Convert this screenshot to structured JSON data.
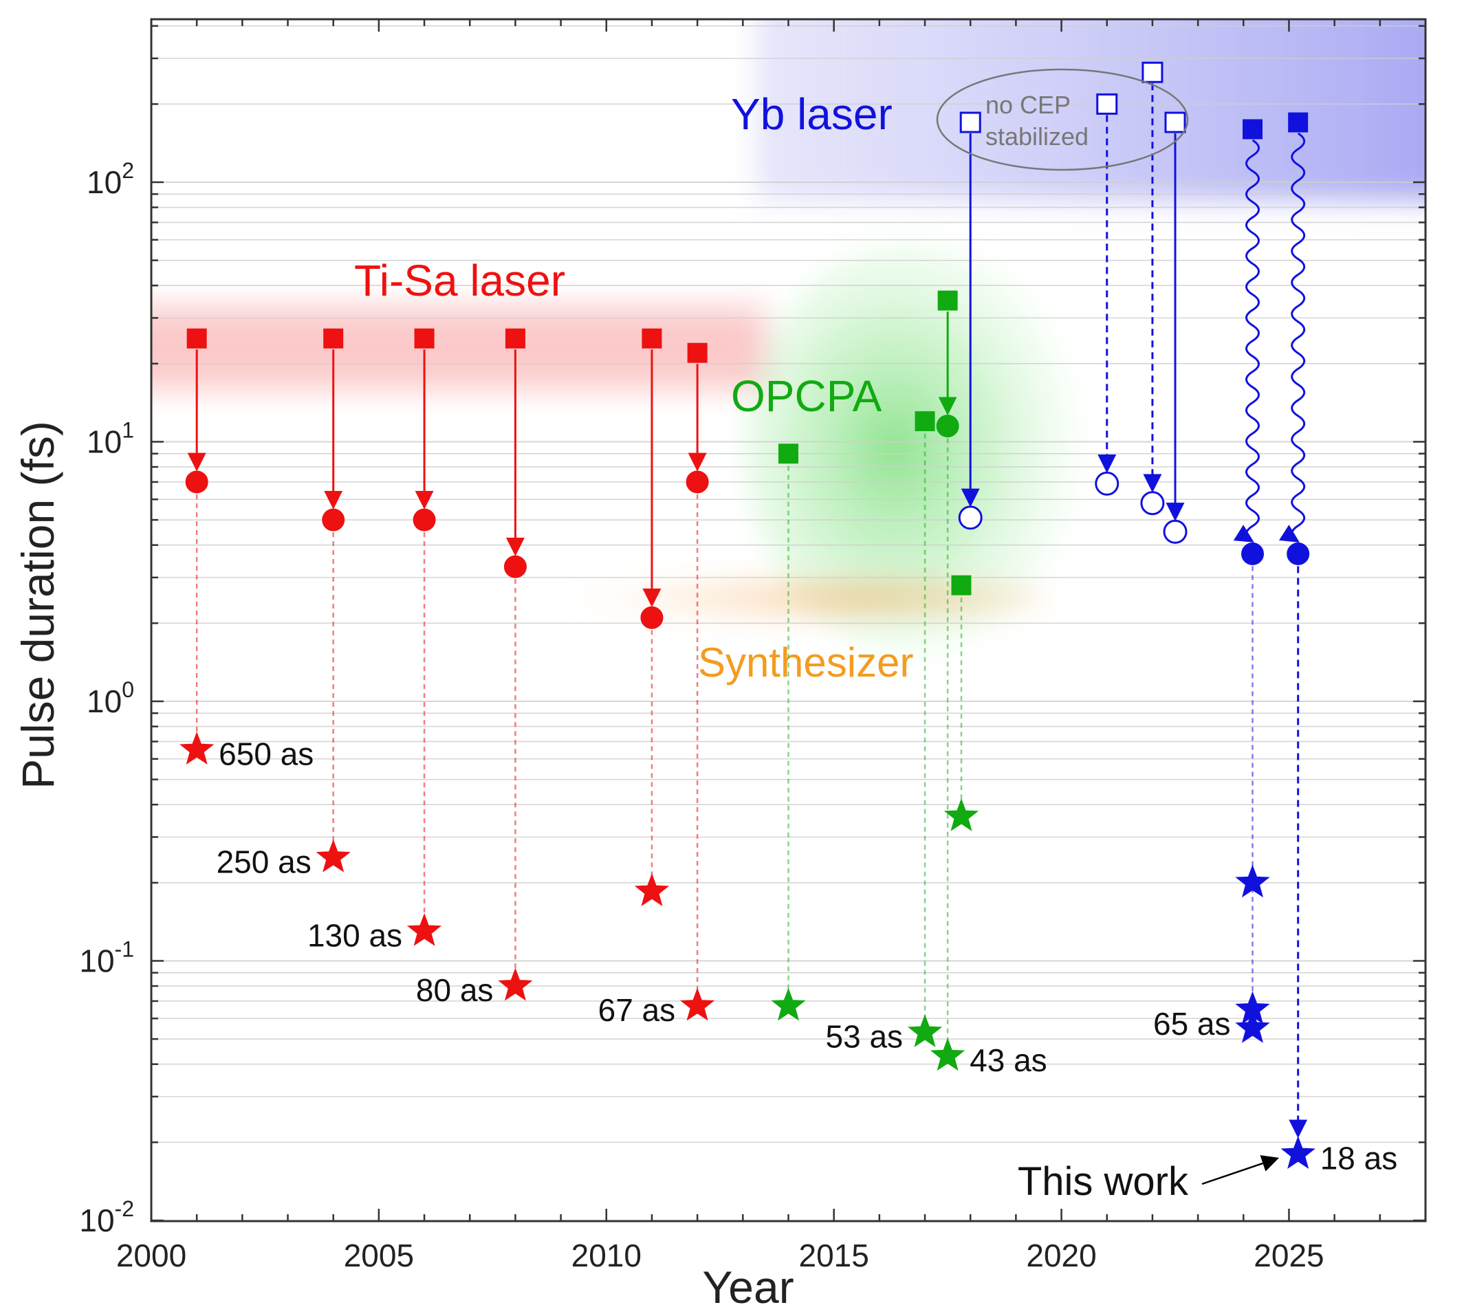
{
  "chart_data": {
    "type": "scatter",
    "title": "",
    "xlabel": "Year",
    "ylabel": "Pulse duration (fs)",
    "xlim": [
      2000,
      2028
    ],
    "ylim": [
      0.01,
      400
    ],
    "yscale": "log",
    "x_ticks": [
      2000,
      2005,
      2010,
      2015,
      2020,
      2025
    ],
    "y_ticks": [
      {
        "value": 0.01,
        "base": "10",
        "exp": "-2"
      },
      {
        "value": 0.1,
        "base": "10",
        "exp": "-1"
      },
      {
        "value": 1,
        "base": "10",
        "exp": "0"
      },
      {
        "value": 10,
        "base": "10",
        "exp": "1"
      },
      {
        "value": 100,
        "base": "10",
        "exp": "2"
      }
    ],
    "grid": "horizontal-minor",
    "colors": {
      "ti_sa": "#ee1111",
      "opcpa": "#11aa11",
      "yb": "#1111dd",
      "synthesizer": "#f39c1f",
      "annotation": "#777777"
    },
    "regions": [
      {
        "name": "Ti-Sa laser",
        "color": "#ee1111",
        "label": "Ti-Sa laser"
      },
      {
        "name": "OPCPA",
        "color": "#11aa11",
        "label": "OPCPA"
      },
      {
        "name": "Yb laser",
        "color": "#1111dd",
        "label": "Yb laser"
      },
      {
        "name": "Synthesizer",
        "color": "#f39c1f",
        "label": "Synthesizer"
      }
    ],
    "groups": [
      {
        "year": 2001,
        "series": "ti_sa",
        "driver": 25,
        "compressed": 7,
        "attosecond": 0.65,
        "label": "650 as",
        "label_side": "right",
        "style": "solid",
        "cep": "stabilized"
      },
      {
        "year": 2004,
        "series": "ti_sa",
        "driver": 25,
        "compressed": 5,
        "attosecond": 0.25,
        "label": "250 as",
        "label_side": "left",
        "style": "solid",
        "cep": "stabilized"
      },
      {
        "year": 2006,
        "series": "ti_sa",
        "driver": 25,
        "compressed": 5,
        "attosecond": 0.13,
        "label": "130 as",
        "label_side": "left",
        "style": "solid",
        "cep": "stabilized"
      },
      {
        "year": 2008,
        "series": "ti_sa",
        "driver": 25,
        "compressed": 3.3,
        "attosecond": 0.08,
        "label": "80 as",
        "label_side": "left",
        "style": "solid",
        "cep": "stabilized"
      },
      {
        "year": 2011,
        "series": "ti_sa",
        "driver": 25,
        "compressed": 2.1,
        "attosecond": 0.185,
        "label": "",
        "label_side": "none",
        "style": "solid",
        "cep": "stabilized"
      },
      {
        "year": 2012,
        "series": "ti_sa",
        "driver": 22,
        "compressed": 7,
        "attosecond": 0.067,
        "label": "67 as",
        "label_side": "left",
        "style": "solid",
        "cep": "stabilized"
      },
      {
        "year": 2014,
        "series": "opcpa",
        "driver": 9,
        "compressed": null,
        "attosecond": 0.067,
        "label": "",
        "label_side": "none",
        "style": "solid",
        "cep": "stabilized"
      },
      {
        "year": 2017,
        "series": "opcpa",
        "driver": 12,
        "compressed": null,
        "attosecond": 0.053,
        "label": "53 as",
        "label_side": "left",
        "style": "solid",
        "cep": "stabilized"
      },
      {
        "year": 2017.5,
        "series": "opcpa",
        "driver": 35,
        "compressed": 11.5,
        "attosecond": 0.043,
        "label": "43 as",
        "label_side": "right",
        "style": "solid",
        "cep": "stabilized"
      },
      {
        "year": 2017.8,
        "series": "opcpa",
        "driver": 2.8,
        "compressed": null,
        "attosecond": 0.36,
        "label": "",
        "label_side": "none",
        "style": "solid",
        "cep": "stabilized"
      },
      {
        "year": 2018,
        "series": "yb",
        "driver": 170,
        "compressed": 5.1,
        "attosecond": null,
        "label": "",
        "label_side": "none",
        "style": "solid",
        "cep": "not-stabilized"
      },
      {
        "year": 2021,
        "series": "yb",
        "driver": 200,
        "compressed": 6.9,
        "attosecond": null,
        "label": "",
        "label_side": "none",
        "style": "dashed",
        "cep": "not-stabilized"
      },
      {
        "year": 2022,
        "series": "yb",
        "driver": 265,
        "compressed": 5.8,
        "attosecond": null,
        "label": "",
        "label_side": "none",
        "style": "dashed",
        "cep": "not-stabilized"
      },
      {
        "year": 2022.5,
        "series": "yb",
        "driver": 170,
        "compressed": 4.5,
        "attosecond": null,
        "label": "",
        "label_side": "none",
        "style": "solid",
        "cep": "not-stabilized"
      },
      {
        "year": 2024.2,
        "series": "yb",
        "driver": 160,
        "compressed": 3.7,
        "attosecond": [
          0.2,
          0.065,
          0.055
        ],
        "label": "65 as",
        "label_side": "left",
        "style": "wavy",
        "cep": "stabilized"
      },
      {
        "year": 2025.2,
        "series": "yb",
        "driver": 170,
        "compressed": 3.7,
        "attosecond": 0.018,
        "label": "18 as",
        "label_side": "right",
        "style": "wavy",
        "cep": "stabilized"
      }
    ],
    "annotations": [
      {
        "id": "cep",
        "text_lines": [
          "no CEP",
          "stabilized"
        ]
      },
      {
        "id": "this-work",
        "text": "This work",
        "points_to_year": 2025.2,
        "points_to_value": 0.018
      }
    ]
  }
}
